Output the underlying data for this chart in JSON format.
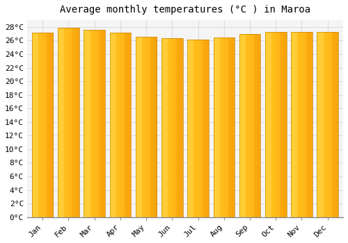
{
  "title": "Average monthly temperatures (°C ) in Maroa",
  "months": [
    "Jan",
    "Feb",
    "Mar",
    "Apr",
    "May",
    "Jun",
    "Jul",
    "Aug",
    "Sep",
    "Oct",
    "Nov",
    "Dec"
  ],
  "values": [
    27.2,
    27.9,
    27.6,
    27.2,
    26.6,
    26.3,
    26.1,
    26.4,
    27.0,
    27.3,
    27.3,
    27.3
  ],
  "bar_color_light": "#FFD966",
  "bar_color_dark": "#F5A623",
  "background_color": "#FFFFFF",
  "plot_bg_color": "#F5F5F5",
  "grid_color": "#DDDDDD",
  "ylim": [
    0,
    29
  ],
  "ytick_step": 2,
  "title_fontsize": 10,
  "tick_fontsize": 8,
  "font_family": "monospace"
}
